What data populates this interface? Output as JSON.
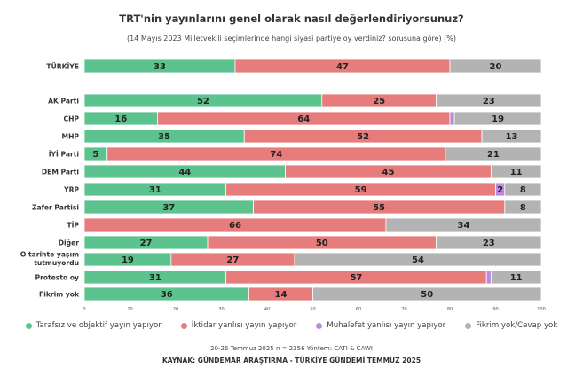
{
  "chart_data": {
    "type": "bar",
    "orientation": "horizontal-stacked",
    "title": "TRT'nin yayınlarını genel olarak nasıl değerlendiriyorsunuz?",
    "subtitle": "(14 Mayıs 2023 Milletvekili seçimlerinde hangi siyasi partiye oy verdiniz? sorusuna göre) (%)",
    "categories": [
      "TÜRKİYE",
      "AK Parti",
      "CHP",
      "MHP",
      "İYİ Parti",
      "DEM Parti",
      "YRP",
      "Zafer Partisi",
      "TİP",
      "Diğer",
      "O tarihte yaşım tutmuyordu",
      "Protesto oy",
      "Fikrim yok"
    ],
    "category_lines": [
      [
        "TÜRKİYE"
      ],
      [
        "AK Parti"
      ],
      [
        "CHP"
      ],
      [
        "MHP"
      ],
      [
        "İYİ Parti"
      ],
      [
        "DEM Parti"
      ],
      [
        "YRP"
      ],
      [
        "Zafer Partisi"
      ],
      [
        "TİP"
      ],
      [
        "Diğer"
      ],
      [
        "O tarihte yaşım",
        "tutmuyordu"
      ],
      [
        "Protesto oy"
      ],
      [
        "Fikrim yok"
      ]
    ],
    "series": [
      {
        "name": "Tarafsız ve objektif yayın yapıyor",
        "color": "#5CC38F",
        "values": [
          33,
          52,
          16,
          35,
          5,
          44,
          31,
          37,
          0,
          27,
          19,
          31,
          36
        ]
      },
      {
        "name": "İktidar yanlısı yayın yapıyor",
        "color": "#E67C7C",
        "values": [
          47,
          25,
          64,
          52,
          74,
          45,
          59,
          55,
          66,
          50,
          27,
          57,
          14
        ]
      },
      {
        "name": "Muhalefet yanlısı yayın yapıyor",
        "color": "#B98BE0",
        "values": [
          0,
          0,
          1,
          0,
          0,
          0,
          2,
          0,
          0,
          0,
          0,
          1,
          0
        ]
      },
      {
        "name": "Fikrim yok/Cevap yok",
        "color": "#B3B3B3",
        "values": [
          20,
          23,
          19,
          13,
          21,
          11,
          8,
          8,
          34,
          23,
          54,
          11,
          50
        ]
      }
    ],
    "label_min": 2,
    "xlim": [
      0,
      100
    ],
    "xticks": [
      0,
      10,
      20,
      30,
      40,
      50,
      60,
      70,
      80,
      90,
      100
    ],
    "legend_position": "bottom"
  },
  "footer": {
    "meta": "20-26 Temmuz 2025 n = 2256 Yöntem: CATI & CAWI",
    "source": "KAYNAK: GÜNDEMAR ARAŞTIRMA - TÜRKİYE GÜNDEMİ TEMMUZ 2025"
  }
}
